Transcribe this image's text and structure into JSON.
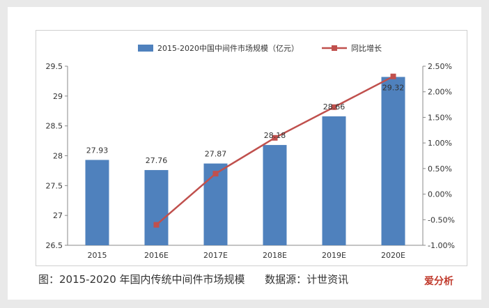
{
  "chart_data": {
    "type": "bar",
    "categories": [
      "2015",
      "2016E",
      "2017E",
      "2018E",
      "2019E",
      "2020E"
    ],
    "series": [
      {
        "name": "2015-2020中国中间件市场规模（亿元）",
        "type": "bar",
        "axis": "left",
        "values": [
          27.93,
          27.76,
          27.87,
          28.18,
          28.66,
          29.32
        ],
        "labels": [
          "27.93",
          "27.76",
          "27.87",
          "28.18",
          "28.66",
          "29.32"
        ]
      },
      {
        "name": "同比增长",
        "type": "line",
        "axis": "right",
        "values": [
          null,
          -0.6,
          0.4,
          1.1,
          1.7,
          2.3
        ]
      }
    ],
    "ylim": [
      26.5,
      29.5
    ],
    "yticks": [
      "26.5",
      "27",
      "27.5",
      "28",
      "28.5",
      "29",
      "29.5"
    ],
    "y2lim": [
      -1.0,
      2.5
    ],
    "y2ticks": [
      "-1.00%",
      "-0.50%",
      "0.00%",
      "0.50%",
      "1.00%",
      "1.50%",
      "2.00%",
      "2.50%"
    ],
    "legend_position": "top",
    "colors": {
      "bar": "#4f81bd",
      "line": "#c0504d"
    }
  },
  "caption": "图：2015-2020 年国内传统中间件市场规模      数据源：计世资讯",
  "logo": "爱分析"
}
